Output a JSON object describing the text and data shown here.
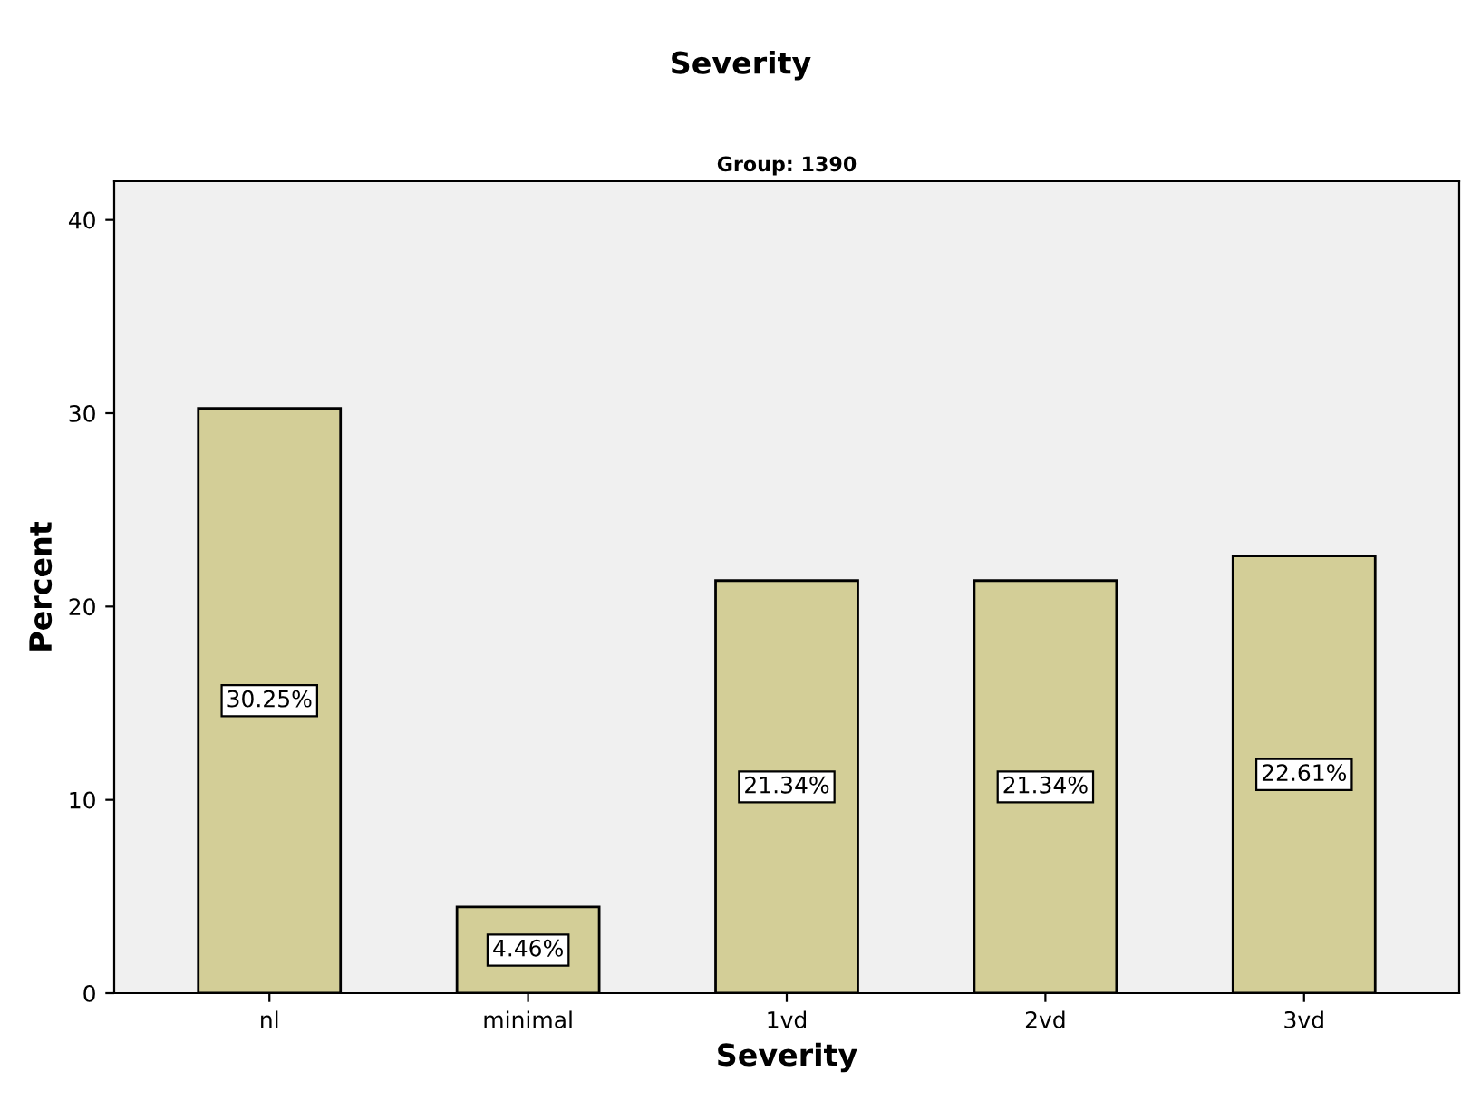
{
  "chart_data": {
    "type": "bar",
    "title": "Severity",
    "subtitle": "Group: 1390",
    "xlabel": "Severity",
    "ylabel": "Percent",
    "categories": [
      "nl",
      "minimal",
      "1vd",
      "2vd",
      "3vd"
    ],
    "values": [
      30.25,
      4.46,
      21.34,
      21.34,
      22.61
    ],
    "value_labels": [
      "30.25%",
      "4.46%",
      "21.34%",
      "21.34%",
      "22.61%"
    ],
    "color": "#d3ce97",
    "ylim": [
      0,
      42
    ],
    "yticks": [
      0,
      10,
      20,
      30,
      40
    ],
    "grid": false,
    "legend": false
  }
}
